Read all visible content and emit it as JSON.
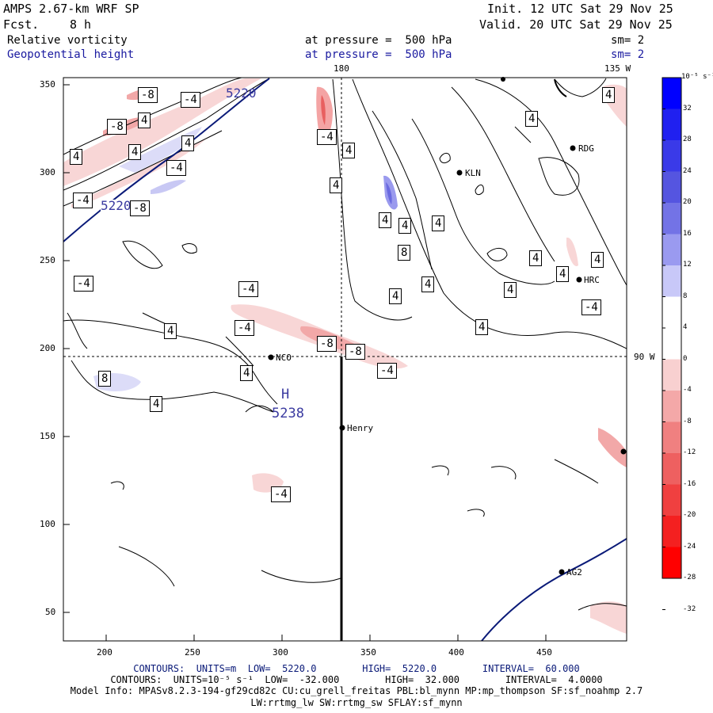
{
  "header": {
    "model": "AMPS 2.67-km WRF SP",
    "fcst_label": "Fcst.",
    "fcst_value": "8 h",
    "init": "Init. 12 UTC Sat 29 Nov 25",
    "valid": "Valid. 20 UTC Sat 29 Nov 25",
    "field1": "Relative vorticity",
    "field2": "Geopotential height",
    "pressure1": "at pressure =  500 hPa",
    "pressure2": "at pressure =  500 hPa",
    "sm1": "sm= 2",
    "sm2": "sm= 2"
  },
  "map": {
    "lon_top_label": "180",
    "lon_top_right_label": "135 W",
    "lat_right_label": "90 W",
    "x_ticks": [
      "200",
      "250",
      "300",
      "350",
      "400",
      "450"
    ],
    "y_ticks": [
      "350",
      "300",
      "250",
      "200",
      "150",
      "100",
      "50"
    ],
    "stations": [
      {
        "name": "NCO"
      },
      {
        "name": "Henry"
      },
      {
        "name": "KLN"
      },
      {
        "name": "RDG"
      },
      {
        "name": "HRC"
      },
      {
        "name": "AG2"
      }
    ],
    "height_high_label": "H",
    "height_high_value": "5238",
    "height_contour_labels": [
      "5220",
      "5220"
    ],
    "vort_labels": [
      "-8",
      "-8",
      "-4",
      "4",
      "4",
      "4",
      "4",
      "-4",
      "-4",
      "-8",
      "-4",
      "4",
      "4",
      "4",
      "4",
      "4",
      "8",
      "4",
      "4",
      "4",
      "4",
      "4",
      "-4",
      "-4",
      "4",
      "4",
      "-8",
      "-8",
      "-4",
      "4",
      "8",
      "4",
      "-4",
      "-4",
      "4",
      "4",
      "4",
      "4",
      "-4"
    ],
    "background_color": "#ffffff",
    "height_contour_color": "#0a1a78",
    "vort_contour_color": "#000000"
  },
  "colorbar": {
    "units_label": "10⁻⁵ s⁻¹",
    "ticks": [
      "32",
      "28",
      "24",
      "20",
      "16",
      "12",
      "8",
      "4",
      "0",
      "-4",
      "-8",
      "-12",
      "-16",
      "-20",
      "-24",
      "-28",
      "-32"
    ],
    "colors": [
      "#0000ff",
      "#2020f0",
      "#3a3ae8",
      "#5555e0",
      "#7373e6",
      "#9a9af0",
      "#c8c8f8",
      "#ffffff",
      "#ffffff",
      "#f8d0d0",
      "#f4a8a8",
      "#f08080",
      "#ee6060",
      "#f04040",
      "#f42020",
      "#ff0000"
    ]
  },
  "footer": {
    "line1": "CONTOURS:  UNITS=m  LOW=  5220.0        HIGH=  5220.0        INTERVAL=  60.000",
    "line2": "CONTOURS:  UNITS=10⁻⁵ s⁻¹  LOW=  -32.000        HIGH=  32.000        INTERVAL=  4.0000",
    "line3": "Model Info: MPASv8.2.3-194-gf29cd82c CU:cu_grell_freitas PBL:bl_mynn MP:mp_thompson SF:sf_noahmp 2.7",
    "line4": "LW:rrtmg_lw SW:rrtmg_sw SFLAY:sf_mynn"
  }
}
